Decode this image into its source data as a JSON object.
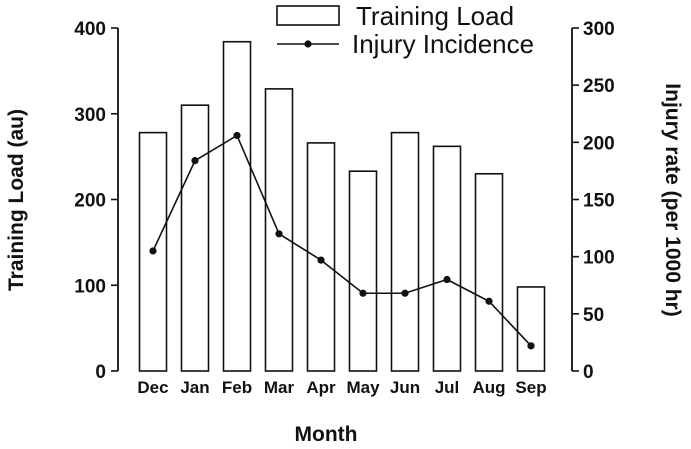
{
  "chart_data": {
    "type": "bar",
    "categories": [
      "Dec",
      "Jan",
      "Feb",
      "Mar",
      "Apr",
      "May",
      "Jun",
      "Jul",
      "Aug",
      "Sep"
    ],
    "series": [
      {
        "name": "Training Load",
        "type": "bar",
        "axis": "left",
        "values": [
          278,
          310,
          384,
          329,
          266,
          233,
          278,
          262,
          230,
          98
        ]
      },
      {
        "name": "Injury Incidence",
        "type": "line",
        "axis": "right",
        "values": [
          105,
          184,
          206,
          120,
          97,
          68,
          68,
          80,
          61,
          22
        ]
      }
    ],
    "xlabel": "Month",
    "ylabel": "Training Load (au)",
    "y2label": "Injury rate (per 1000 hr)",
    "ylim": [
      0,
      400
    ],
    "y2lim": [
      0,
      300
    ],
    "yticks": [
      "0",
      "100",
      "200",
      "300",
      "400"
    ],
    "y2ticks": [
      "0",
      "50",
      "100",
      "150",
      "200",
      "250",
      "300"
    ],
    "grid": false,
    "legend": "top-center",
    "colors": {
      "bar_fill": "#ffffff",
      "stroke": "#111111",
      "line": "#111111"
    }
  }
}
